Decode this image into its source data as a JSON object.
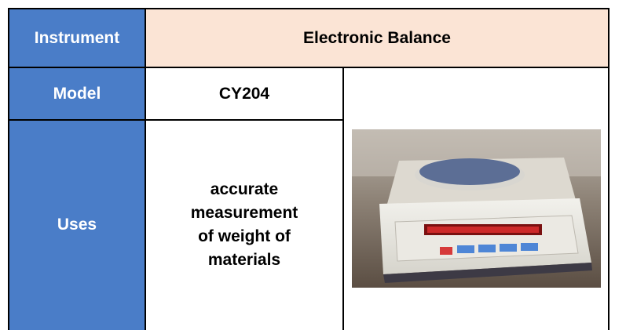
{
  "table": {
    "rows": [
      [
        "Instrument",
        "Electronic Balance"
      ],
      [
        "Model",
        "CY204"
      ],
      [
        "Uses",
        "accurate measurement of weight of materials"
      ]
    ]
  }
}
